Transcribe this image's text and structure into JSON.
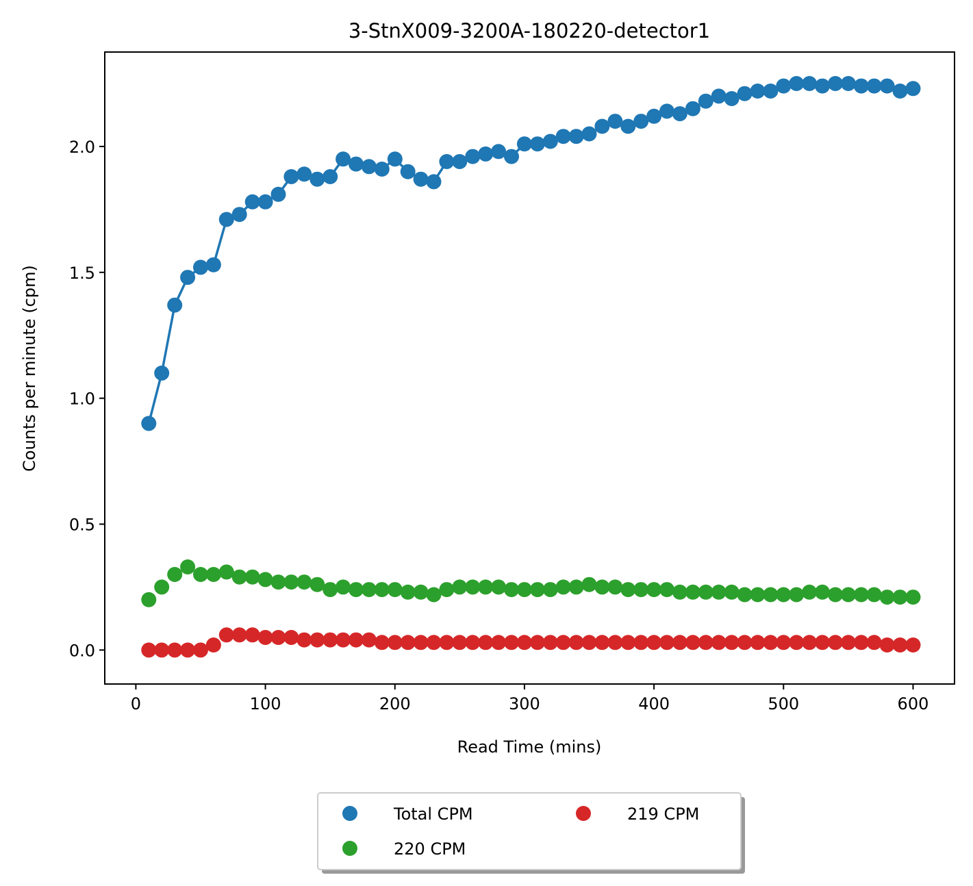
{
  "chart_data": {
    "type": "scatter",
    "title": "3-StnX009-3200A-180220-detector1",
    "xlabel": "Read Time (mins)",
    "ylabel": "Counts per minute (cpm)",
    "xlim": [
      -24,
      632
    ],
    "ylim": [
      -0.135,
      2.375
    ],
    "xticks": [
      0,
      100,
      200,
      300,
      400,
      500,
      600
    ],
    "xtick_labels": [
      "0",
      "100",
      "200",
      "300",
      "400",
      "500",
      "600"
    ],
    "yticks": [
      0.0,
      0.5,
      1.0,
      1.5,
      2.0
    ],
    "ytick_labels": [
      "0.0",
      "0.5",
      "1.0",
      "1.5",
      "2.0"
    ],
    "grid": false,
    "legend_position": "bottom-center, below plot, 2 columns",
    "x": [
      10,
      20,
      30,
      40,
      50,
      60,
      70,
      80,
      90,
      100,
      110,
      120,
      130,
      140,
      150,
      160,
      170,
      180,
      190,
      200,
      210,
      220,
      230,
      240,
      250,
      260,
      270,
      280,
      290,
      300,
      310,
      320,
      330,
      340,
      350,
      360,
      370,
      380,
      390,
      400,
      410,
      420,
      430,
      440,
      450,
      460,
      470,
      480,
      490,
      500,
      510,
      520,
      530,
      540,
      550,
      560,
      570,
      580,
      590,
      600
    ],
    "series": [
      {
        "name": "Total CPM",
        "color": "#1f77b4",
        "line": true,
        "values": [
          0.9,
          1.1,
          1.37,
          1.48,
          1.52,
          1.53,
          1.71,
          1.73,
          1.78,
          1.78,
          1.81,
          1.88,
          1.89,
          1.87,
          1.88,
          1.95,
          1.93,
          1.92,
          1.91,
          1.95,
          1.9,
          1.87,
          1.86,
          1.94,
          1.94,
          1.96,
          1.97,
          1.98,
          1.96,
          2.01,
          2.01,
          2.02,
          2.04,
          2.04,
          2.05,
          2.08,
          2.1,
          2.08,
          2.1,
          2.12,
          2.14,
          2.13,
          2.15,
          2.18,
          2.2,
          2.19,
          2.21,
          2.22,
          2.22,
          2.24,
          2.25,
          2.25,
          2.24,
          2.25,
          2.25,
          2.24,
          2.24,
          2.24,
          2.22,
          2.23
        ]
      },
      {
        "name": "220 CPM",
        "color": "#2ca02c",
        "line": false,
        "values": [
          0.2,
          0.25,
          0.3,
          0.33,
          0.3,
          0.3,
          0.31,
          0.29,
          0.29,
          0.28,
          0.27,
          0.27,
          0.27,
          0.26,
          0.24,
          0.25,
          0.24,
          0.24,
          0.24,
          0.24,
          0.23,
          0.23,
          0.22,
          0.24,
          0.25,
          0.25,
          0.25,
          0.25,
          0.24,
          0.24,
          0.24,
          0.24,
          0.25,
          0.25,
          0.26,
          0.25,
          0.25,
          0.24,
          0.24,
          0.24,
          0.24,
          0.23,
          0.23,
          0.23,
          0.23,
          0.23,
          0.22,
          0.22,
          0.22,
          0.22,
          0.22,
          0.23,
          0.23,
          0.22,
          0.22,
          0.22,
          0.22,
          0.21,
          0.21,
          0.21
        ]
      },
      {
        "name": "219 CPM",
        "color": "#d62728",
        "line": false,
        "values": [
          0.0,
          0.0,
          0.0,
          0.0,
          0.0,
          0.02,
          0.06,
          0.06,
          0.06,
          0.05,
          0.05,
          0.05,
          0.04,
          0.04,
          0.04,
          0.04,
          0.04,
          0.04,
          0.03,
          0.03,
          0.03,
          0.03,
          0.03,
          0.03,
          0.03,
          0.03,
          0.03,
          0.03,
          0.03,
          0.03,
          0.03,
          0.03,
          0.03,
          0.03,
          0.03,
          0.03,
          0.03,
          0.03,
          0.03,
          0.03,
          0.03,
          0.03,
          0.03,
          0.03,
          0.03,
          0.03,
          0.03,
          0.03,
          0.03,
          0.03,
          0.03,
          0.03,
          0.03,
          0.03,
          0.03,
          0.03,
          0.03,
          0.02,
          0.02,
          0.02
        ]
      }
    ],
    "legend": [
      {
        "name": "Total CPM",
        "color": "#1f77b4"
      },
      {
        "name": "220 CPM",
        "color": "#2ca02c"
      },
      {
        "name": "219 CPM",
        "color": "#d62728"
      }
    ]
  }
}
